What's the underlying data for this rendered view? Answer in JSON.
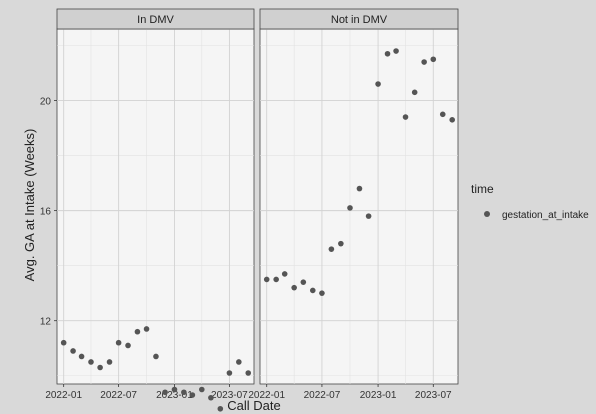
{
  "chart_data": {
    "type": "scatter",
    "xlabel": "Call Date",
    "ylabel": "Avg. GA at Intake (Weeks)",
    "ylim": [
      9.7,
      22.6
    ],
    "yticks": [
      12,
      16,
      20
    ],
    "xlim": [
      "2021-12-10",
      "2023-09-20"
    ],
    "xticks": [
      "2022-01",
      "2022-07",
      "2023-01",
      "2023-07"
    ],
    "grid": true,
    "legend": {
      "title": "time",
      "position": "right",
      "entries": [
        "gestation_at_intake"
      ]
    },
    "series_color": "#555555",
    "panels": [
      {
        "title": "In DMV",
        "series": [
          {
            "name": "gestation_at_intake",
            "points": [
              {
                "x": "2022-01-01",
                "y": 11.2
              },
              {
                "x": "2022-02-01",
                "y": 10.9
              },
              {
                "x": "2022-03-01",
                "y": 10.7
              },
              {
                "x": "2022-04-01",
                "y": 10.5
              },
              {
                "x": "2022-05-01",
                "y": 10.3
              },
              {
                "x": "2022-06-01",
                "y": 10.5
              },
              {
                "x": "2022-07-01",
                "y": 11.2
              },
              {
                "x": "2022-08-01",
                "y": 11.1
              },
              {
                "x": "2022-09-01",
                "y": 11.6
              },
              {
                "x": "2022-10-01",
                "y": 11.7
              },
              {
                "x": "2022-11-01",
                "y": 10.7
              },
              {
                "x": "2022-12-01",
                "y": 9.4
              },
              {
                "x": "2023-01-01",
                "y": 9.5
              },
              {
                "x": "2023-02-01",
                "y": 9.4
              },
              {
                "x": "2023-03-01",
                "y": 9.3
              },
              {
                "x": "2023-04-01",
                "y": 9.5
              },
              {
                "x": "2023-05-01",
                "y": 9.2
              },
              {
                "x": "2023-06-01",
                "y": 8.8
              },
              {
                "x": "2023-07-01",
                "y": 10.1
              },
              {
                "x": "2023-08-01",
                "y": 10.5
              },
              {
                "x": "2023-09-01",
                "y": 10.1
              }
            ]
          }
        ]
      },
      {
        "title": "Not in DMV",
        "series": [
          {
            "name": "gestation_at_intake",
            "points": [
              {
                "x": "2022-01-01",
                "y": 13.5
              },
              {
                "x": "2022-02-01",
                "y": 13.5
              },
              {
                "x": "2022-03-01",
                "y": 13.7
              },
              {
                "x": "2022-04-01",
                "y": 13.2
              },
              {
                "x": "2022-05-01",
                "y": 13.4
              },
              {
                "x": "2022-06-01",
                "y": 13.1
              },
              {
                "x": "2022-07-01",
                "y": 13.0
              },
              {
                "x": "2022-08-01",
                "y": 14.6
              },
              {
                "x": "2022-09-01",
                "y": 14.8
              },
              {
                "x": "2022-10-01",
                "y": 16.1
              },
              {
                "x": "2022-11-01",
                "y": 16.8
              },
              {
                "x": "2022-12-01",
                "y": 15.8
              },
              {
                "x": "2023-01-01",
                "y": 20.6
              },
              {
                "x": "2023-02-01",
                "y": 21.7
              },
              {
                "x": "2023-03-01",
                "y": 21.8
              },
              {
                "x": "2023-04-01",
                "y": 19.4
              },
              {
                "x": "2023-05-01",
                "y": 20.3
              },
              {
                "x": "2023-06-01",
                "y": 21.4
              },
              {
                "x": "2023-07-01",
                "y": 21.5
              },
              {
                "x": "2023-08-01",
                "y": 19.5
              },
              {
                "x": "2023-09-01",
                "y": 19.3
              }
            ]
          }
        ]
      }
    ]
  }
}
